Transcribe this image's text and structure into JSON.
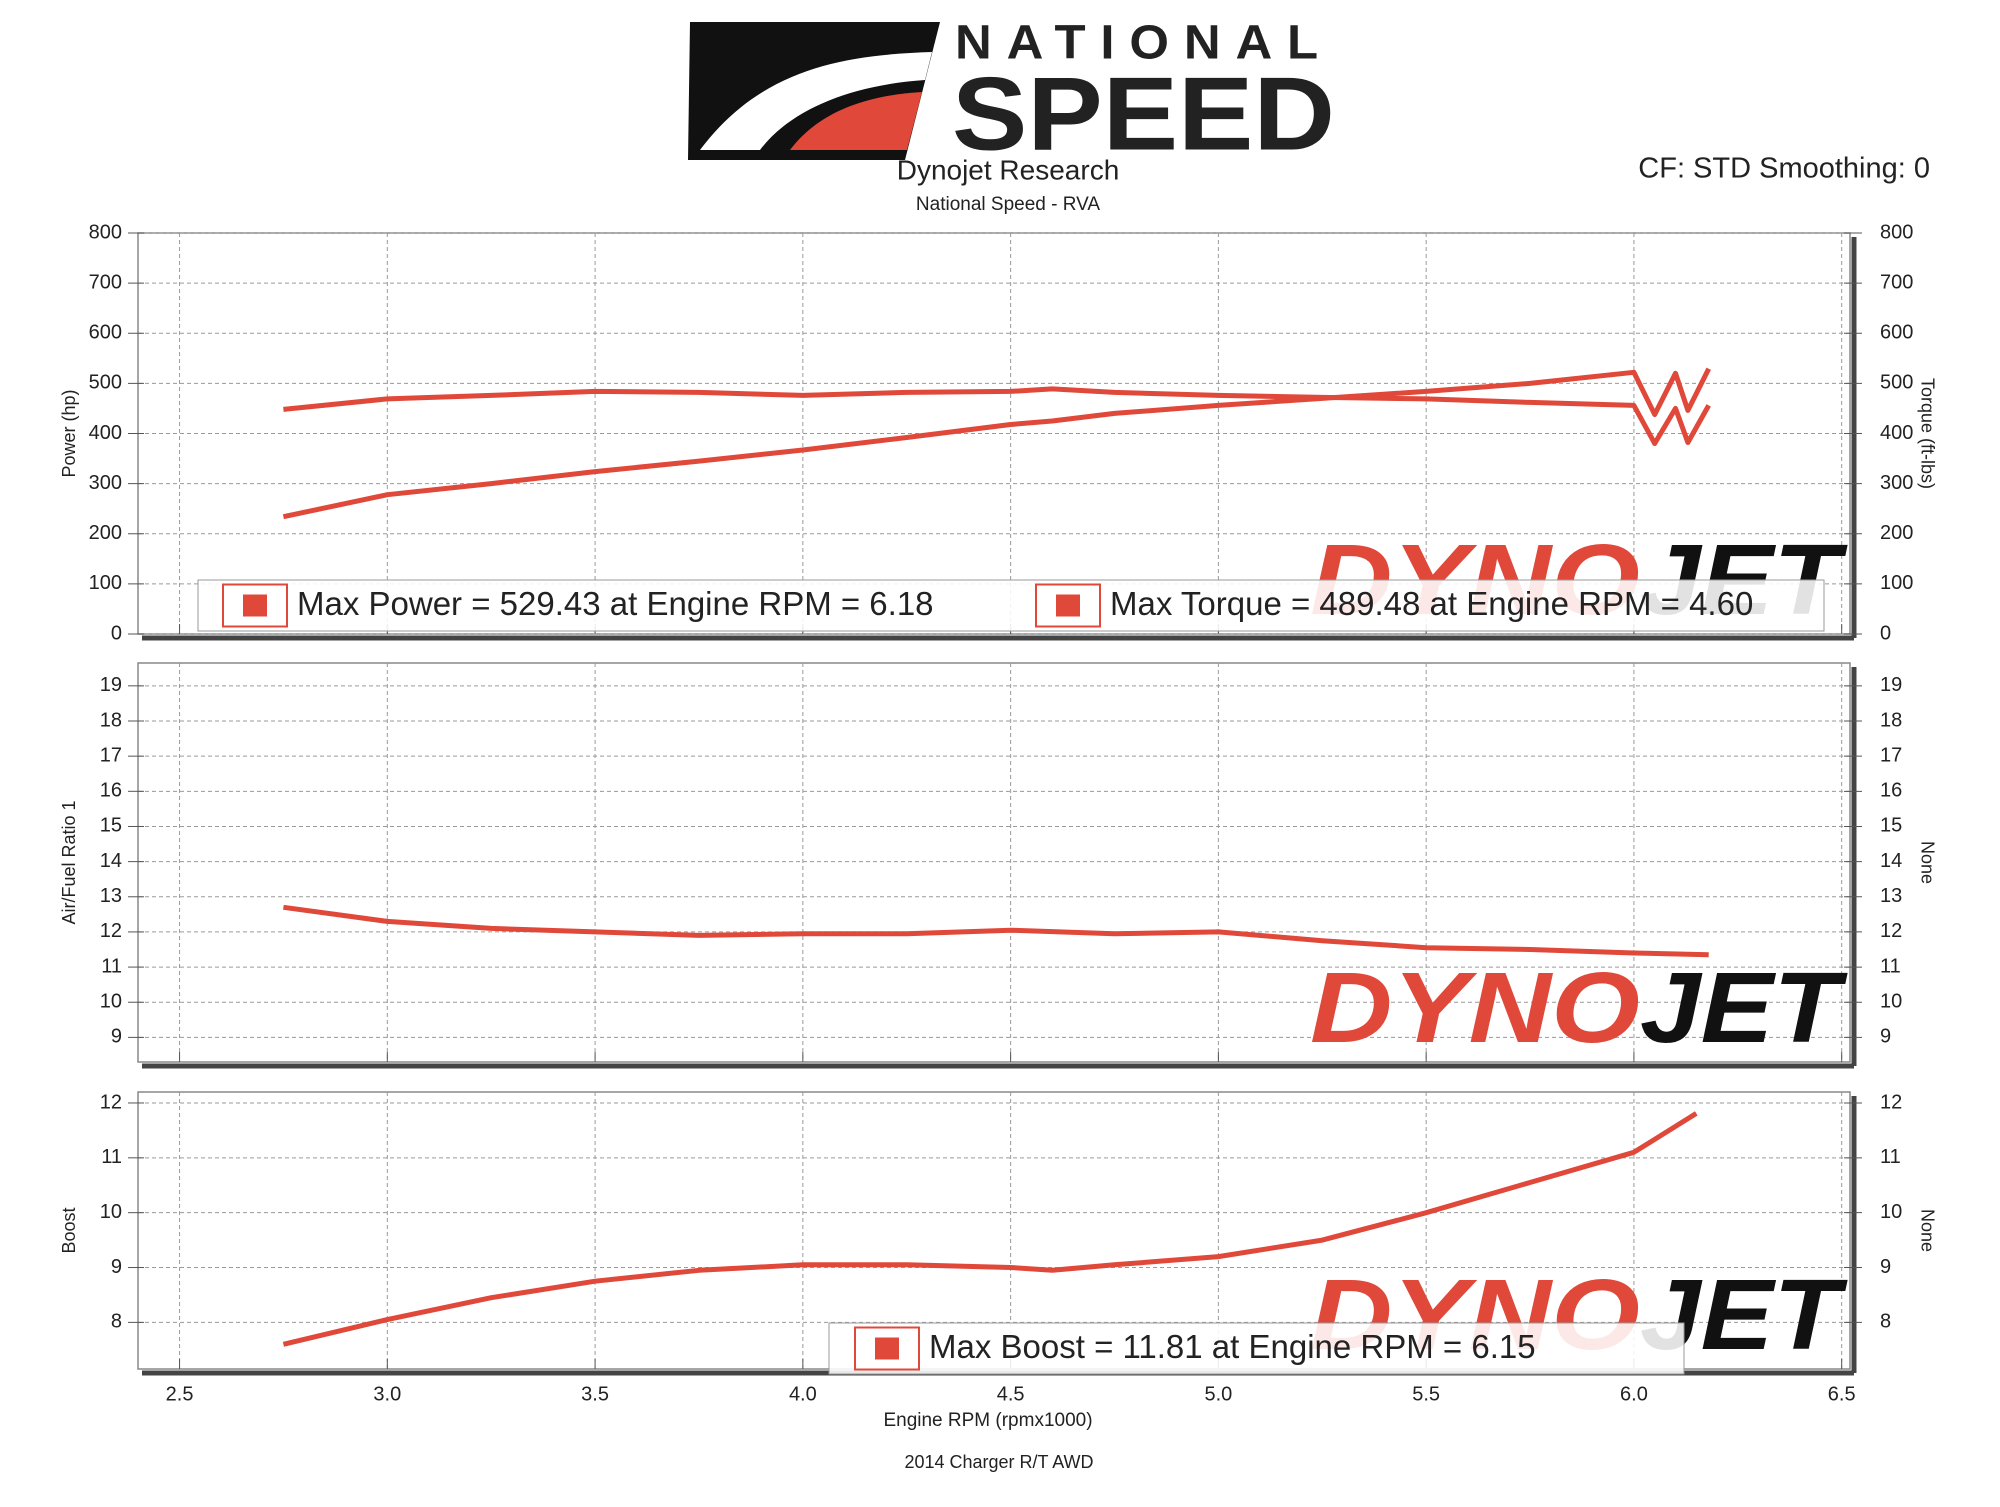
{
  "header": {
    "logo_top": "NATIONAL",
    "logo_bottom": "SPEED",
    "title": "Dynojet Research",
    "subtitle": "National Speed - RVA",
    "settings": "CF: STD Smoothing: 0"
  },
  "watermark": [
    "DYNO",
    "JET"
  ],
  "chart_data": [
    {
      "type": "line",
      "ylabel": "Power (hp)",
      "y2label": "Torque (ft-lbs)",
      "x": [
        2.75,
        3.0,
        3.25,
        3.5,
        3.75,
        4.0,
        4.25,
        4.5,
        4.6,
        4.75,
        5.0,
        5.25,
        5.5,
        5.75,
        6.0,
        6.05,
        6.1,
        6.13,
        6.18
      ],
      "series": [
        {
          "name": "Max Power = 529.43 at Engine RPM = 6.18",
          "color": "#e0483a",
          "values": [
            234,
            278,
            300,
            324,
            345,
            367,
            392,
            418,
            425,
            440,
            456,
            470,
            484,
            500,
            522,
            438,
            520,
            446,
            529
          ]
        },
        {
          "name": "Max Torque = 489.48 at Engine RPM = 4.60",
          "color": "#e0483a",
          "axis": "y2",
          "values": [
            448,
            469,
            476,
            484,
            482,
            476,
            482,
            484,
            489,
            482,
            476,
            472,
            469,
            462,
            456,
            380,
            450,
            382,
            456
          ]
        }
      ],
      "ylim": [
        0,
        800
      ],
      "yticks": [
        0,
        100,
        200,
        300,
        400,
        500,
        600,
        700,
        800
      ],
      "y2lim": [
        0,
        800
      ],
      "y2ticks": [
        0,
        100,
        200,
        300,
        400,
        500,
        600,
        700,
        800
      ],
      "grid": true,
      "legend": "bottom"
    },
    {
      "type": "line",
      "ylabel": "Air/Fuel Ratio 1",
      "y2label": "None",
      "x": [
        2.75,
        3.0,
        3.25,
        3.5,
        3.75,
        4.0,
        4.25,
        4.5,
        4.75,
        5.0,
        5.25,
        5.5,
        5.75,
        6.0,
        6.18
      ],
      "series": [
        {
          "color": "#e0483a",
          "values": [
            12.7,
            12.3,
            12.1,
            12.0,
            11.9,
            11.95,
            11.95,
            12.05,
            11.95,
            12.0,
            11.75,
            11.55,
            11.5,
            11.4,
            11.35
          ]
        }
      ],
      "ylim": [
        8.3,
        19.65
      ],
      "yticks": [
        9,
        10,
        11,
        12,
        13,
        14,
        15,
        16,
        17,
        18,
        19
      ],
      "y2lim": [
        8.3,
        19.65
      ],
      "y2ticks": [
        9,
        10,
        11,
        12,
        13,
        14,
        15,
        16,
        17,
        18,
        19
      ],
      "grid": true
    },
    {
      "type": "line",
      "ylabel": "Boost",
      "y2label": "None",
      "xlabel": "Engine RPM (rpmx1000)",
      "x": [
        2.75,
        3.0,
        3.25,
        3.5,
        3.75,
        4.0,
        4.25,
        4.5,
        4.6,
        4.75,
        5.0,
        5.25,
        5.5,
        5.75,
        6.0,
        6.15
      ],
      "series": [
        {
          "name": "Max Boost = 11.81 at Engine RPM = 6.15",
          "color": "#e0483a",
          "values": [
            7.6,
            8.05,
            8.45,
            8.75,
            8.95,
            9.05,
            9.05,
            9.0,
            8.95,
            9.05,
            9.2,
            9.5,
            10.0,
            10.55,
            11.1,
            11.81
          ]
        }
      ],
      "xlim": [
        2.4,
        6.52
      ],
      "xticks": [
        2.5,
        {
          "value": 3,
          "label": "3.0"
        },
        3.5,
        {
          "value": 4,
          "label": "4.0"
        },
        4.5,
        {
          "value": 5,
          "label": "5.0"
        },
        5.5,
        {
          "value": 6,
          "label": "6.0"
        },
        6.5
      ],
      "ylim": [
        7.15,
        12.2
      ],
      "yticks": [
        8,
        9,
        10,
        11,
        12
      ],
      "y2lim": [
        7.15,
        12.2
      ],
      "y2ticks": [
        8,
        9,
        10,
        11,
        12
      ],
      "grid": true,
      "legend": "bottom"
    }
  ],
  "footer": "2014 Charger R/T AWD"
}
